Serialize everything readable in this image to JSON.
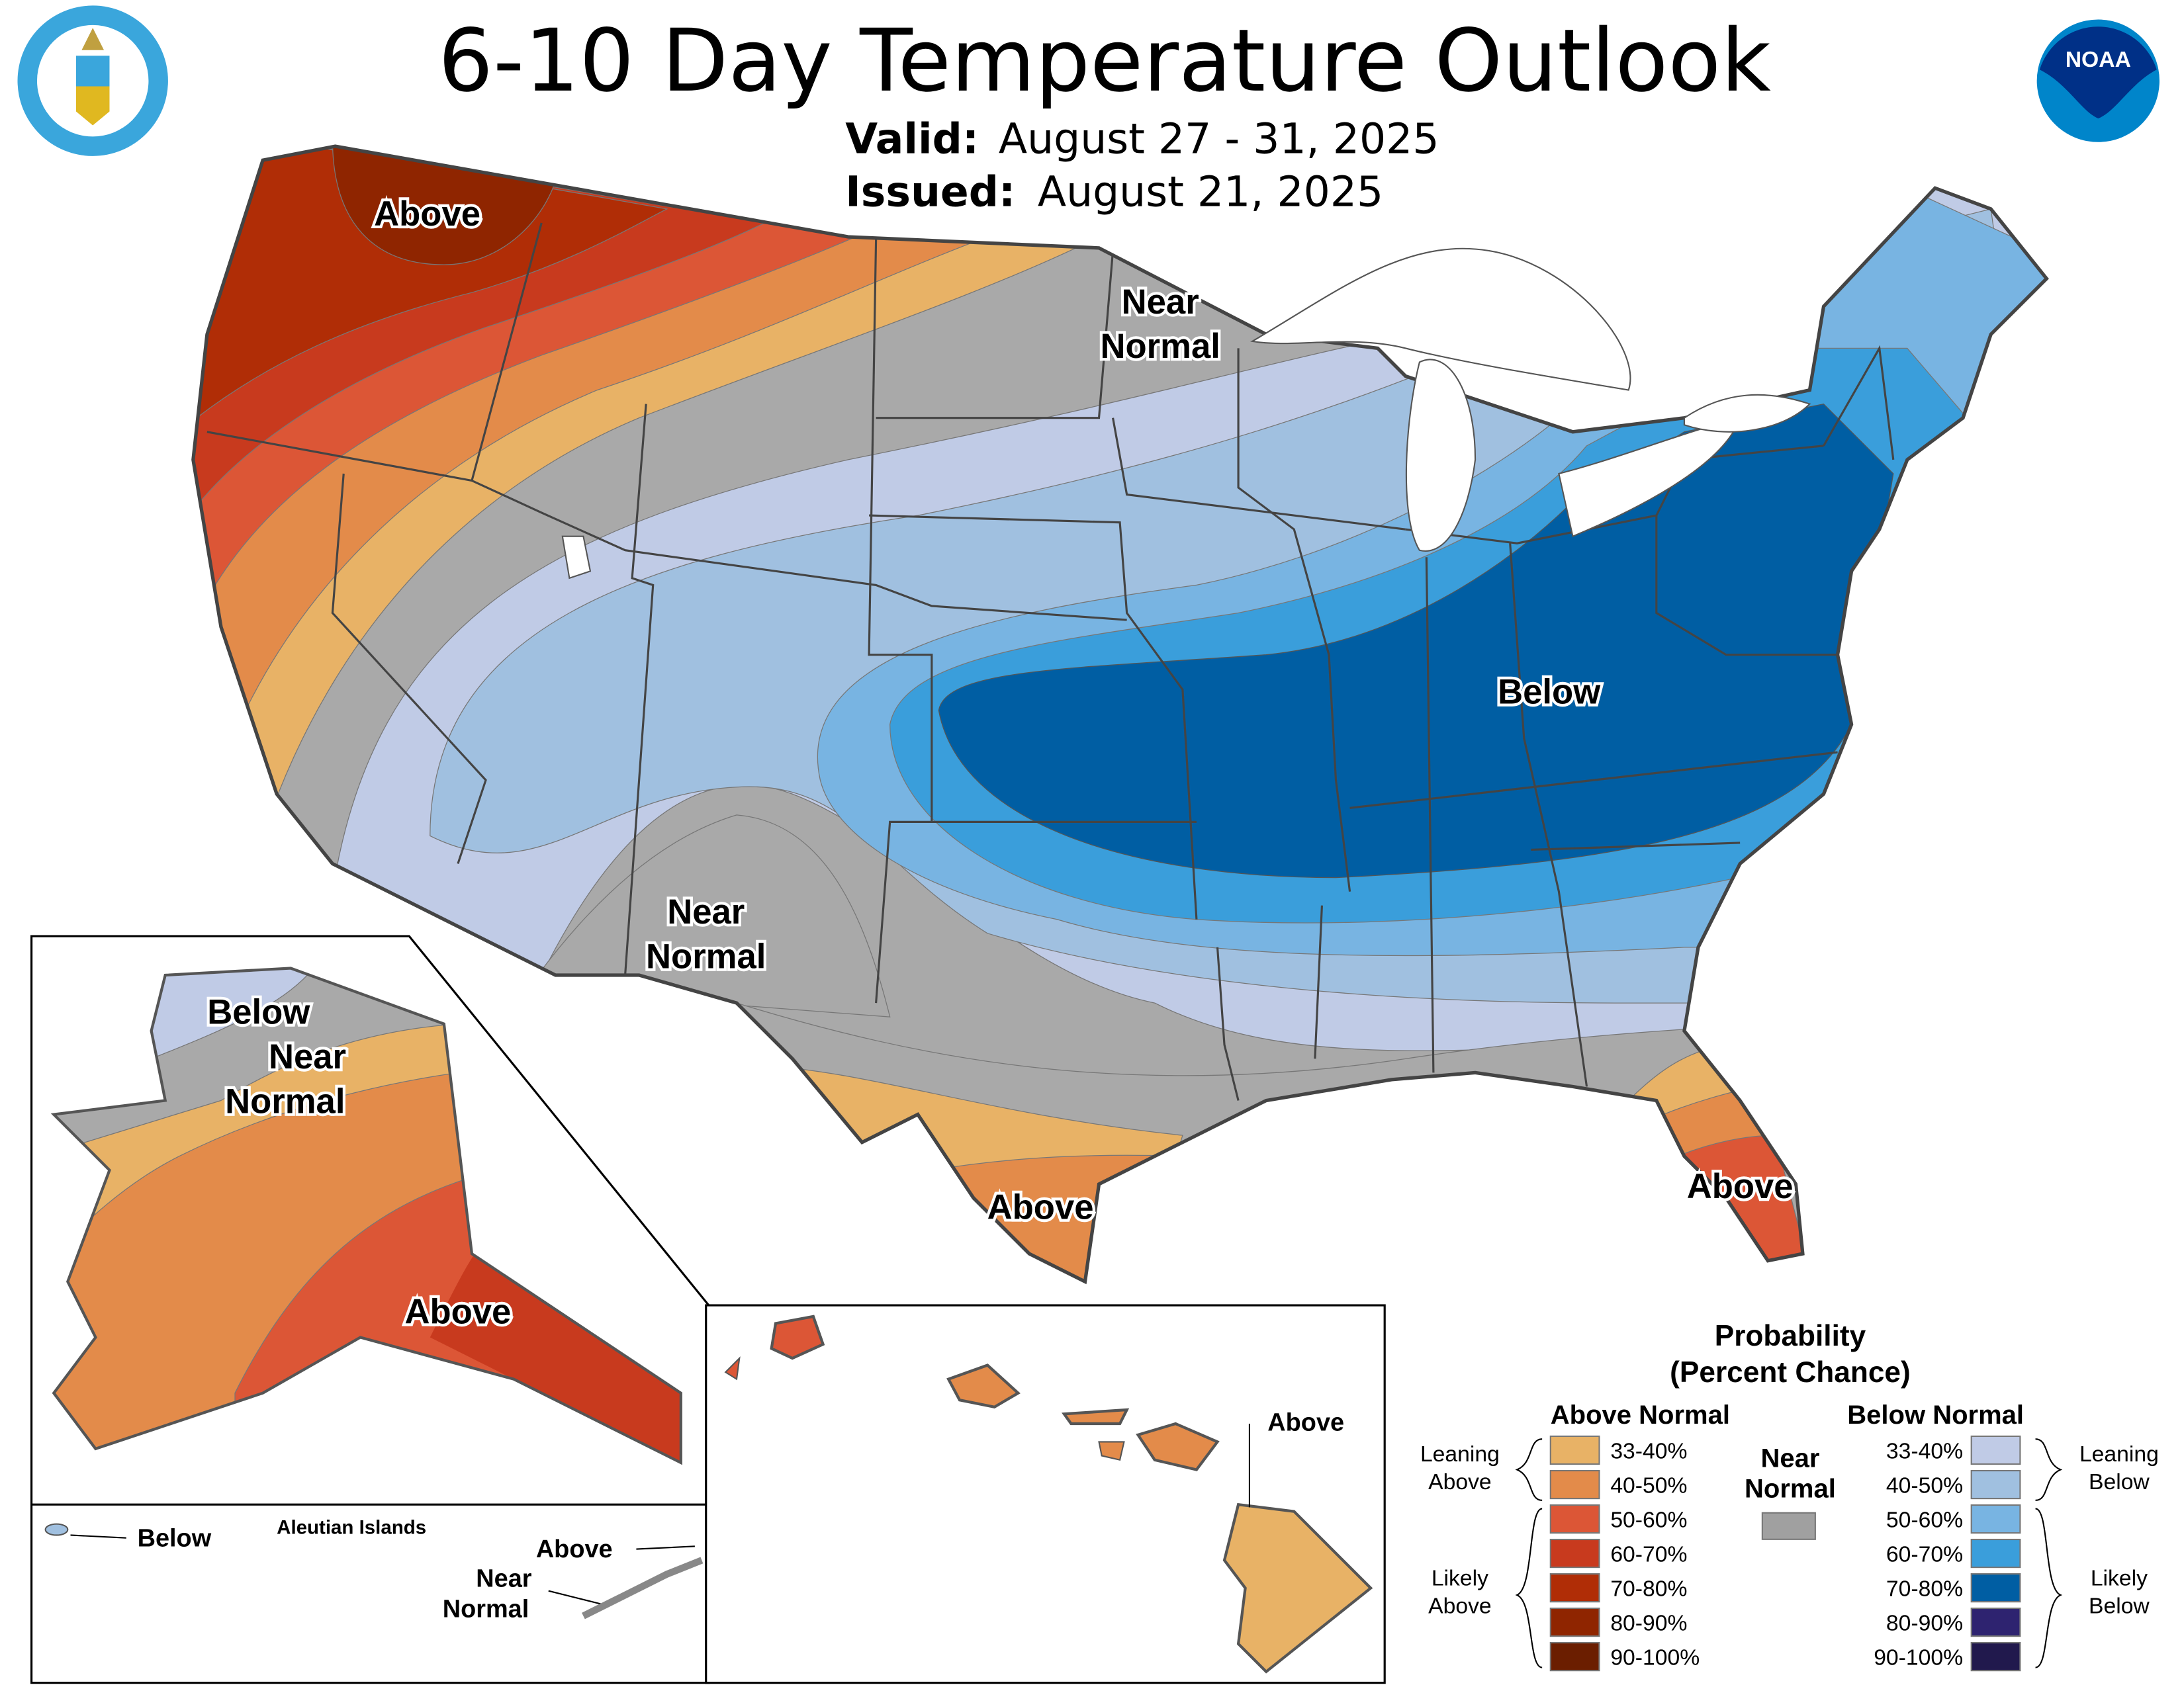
{
  "title": "6-10 Day Temperature Outlook",
  "valid_label": "Valid:",
  "valid_value": "August 27 - 31, 2025",
  "issued_label": "Issued:",
  "issued_value": "August 21, 2025",
  "logos": {
    "left": "Department of Commerce seal",
    "right": "NOAA",
    "right_text": "NOAA"
  },
  "map_labels": {
    "nw_above": "Above",
    "north_near_1": "Near",
    "north_near_2": "Normal",
    "east_below": "Below",
    "sw_near_1": "Near",
    "sw_near_2": "Normal",
    "tx_above": "Above",
    "fl_above": "Above",
    "ak_below": "Below",
    "ak_near_1": "Near",
    "ak_near_2": "Normal",
    "ak_above": "Above",
    "aleutian_title": "Aleutian Islands",
    "aleutian_below": "Below",
    "aleutian_above": "Above",
    "aleutian_near_1": "Near",
    "aleutian_near_2": "Normal",
    "hi_above": "Above"
  },
  "legend": {
    "title_1": "Probability",
    "title_2": "(Percent Chance)",
    "above_header": "Above Normal",
    "below_header": "Below Normal",
    "near_1": "Near",
    "near_2": "Normal",
    "near_color": "#a0a0a0",
    "leaning_above_1": "Leaning",
    "leaning_above_2": "Above",
    "likely_above_1": "Likely",
    "likely_above_2": "Above",
    "leaning_below_1": "Leaning",
    "leaning_below_2": "Below",
    "likely_below_1": "Likely",
    "likely_below_2": "Below",
    "above": [
      {
        "range": "33-40%",
        "color": "#e8b266"
      },
      {
        "range": "40-50%",
        "color": "#e38b4a"
      },
      {
        "range": "50-60%",
        "color": "#dc5636"
      },
      {
        "range": "60-70%",
        "color": "#c83a1e"
      },
      {
        "range": "70-80%",
        "color": "#b02d06"
      },
      {
        "range": "80-90%",
        "color": "#8f2500"
      },
      {
        "range": "90-100%",
        "color": "#6b1e00"
      }
    ],
    "below": [
      {
        "range": "33-40%",
        "color": "#c0cbe6"
      },
      {
        "range": "40-50%",
        "color": "#a0c0e0"
      },
      {
        "range": "50-60%",
        "color": "#78b4e2"
      },
      {
        "range": "60-70%",
        "color": "#3a9edb"
      },
      {
        "range": "70-80%",
        "color": "#005ea3"
      },
      {
        "range": "80-90%",
        "color": "#2e2370"
      },
      {
        "range": "90-100%",
        "color": "#21194d"
      }
    ]
  }
}
